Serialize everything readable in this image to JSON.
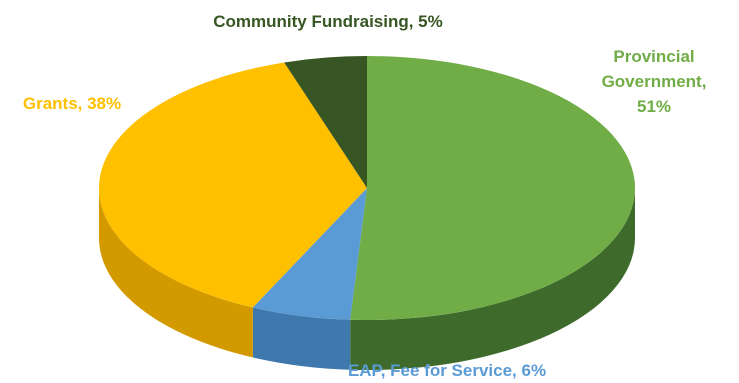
{
  "chart_data": {
    "type": "pie",
    "title": "",
    "slices": [
      {
        "name": "Provincial Government",
        "value": 51,
        "label_lines": [
          "Provincial",
          "Government,",
          "51%"
        ],
        "color": "#70AD47",
        "side_color": "#3E6B2B",
        "label_color": "#70AD47"
      },
      {
        "name": "EAP, Fee for Service",
        "value": 6,
        "label_lines": [
          "EAP, Fee for Service, 6%"
        ],
        "color": "#5B9BD5",
        "side_color": "#3F78AD",
        "label_color": "#5B9BD5"
      },
      {
        "name": "Grants",
        "value": 38,
        "label_lines": [
          "Grants, 38%"
        ],
        "color": "#FFC000",
        "side_color": "#D39A00",
        "label_color": "#FFC000"
      },
      {
        "name": "Community Fundraising",
        "value": 5,
        "label_lines": [
          "Community Fundraising, 5%"
        ],
        "color": "#375623",
        "side_color": "#243B16",
        "label_color": "#375623"
      }
    ],
    "start_angle_deg": 90,
    "direction": "clockwise",
    "legend": "none"
  }
}
